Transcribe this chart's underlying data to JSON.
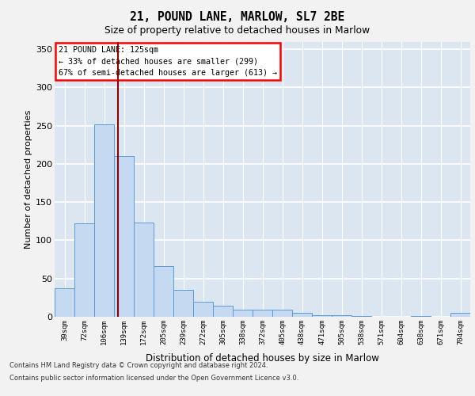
{
  "title_line1": "21, POUND LANE, MARLOW, SL7 2BE",
  "title_line2": "Size of property relative to detached houses in Marlow",
  "xlabel": "Distribution of detached houses by size in Marlow",
  "ylabel": "Number of detached properties",
  "categories": [
    "39sqm",
    "72sqm",
    "106sqm",
    "139sqm",
    "172sqm",
    "205sqm",
    "239sqm",
    "272sqm",
    "305sqm",
    "338sqm",
    "372sqm",
    "405sqm",
    "438sqm",
    "471sqm",
    "505sqm",
    "538sqm",
    "571sqm",
    "604sqm",
    "638sqm",
    "671sqm",
    "704sqm"
  ],
  "values": [
    37,
    122,
    252,
    210,
    123,
    66,
    35,
    20,
    14,
    9,
    9,
    9,
    5,
    2,
    2,
    1,
    0,
    0,
    1,
    0,
    5
  ],
  "bar_color": "#c5d9f1",
  "bar_edge_color": "#5b9bd5",
  "annotation_title": "21 POUND LANE: 125sqm",
  "annotation_line1": "← 33% of detached houses are smaller (299)",
  "annotation_line2": "67% of semi-detached houses are larger (613) →",
  "vline_color": "#8b0000",
  "vline_x": 2.7,
  "ylim": [
    0,
    360
  ],
  "yticks": [
    0,
    50,
    100,
    150,
    200,
    250,
    300,
    350
  ],
  "footer_line1": "Contains HM Land Registry data © Crown copyright and database right 2024.",
  "footer_line2": "Contains public sector information licensed under the Open Government Licence v3.0.",
  "bg_color": "#dce6f1",
  "grid_color": "#ffffff",
  "fig_bg_color": "#f2f2f2"
}
